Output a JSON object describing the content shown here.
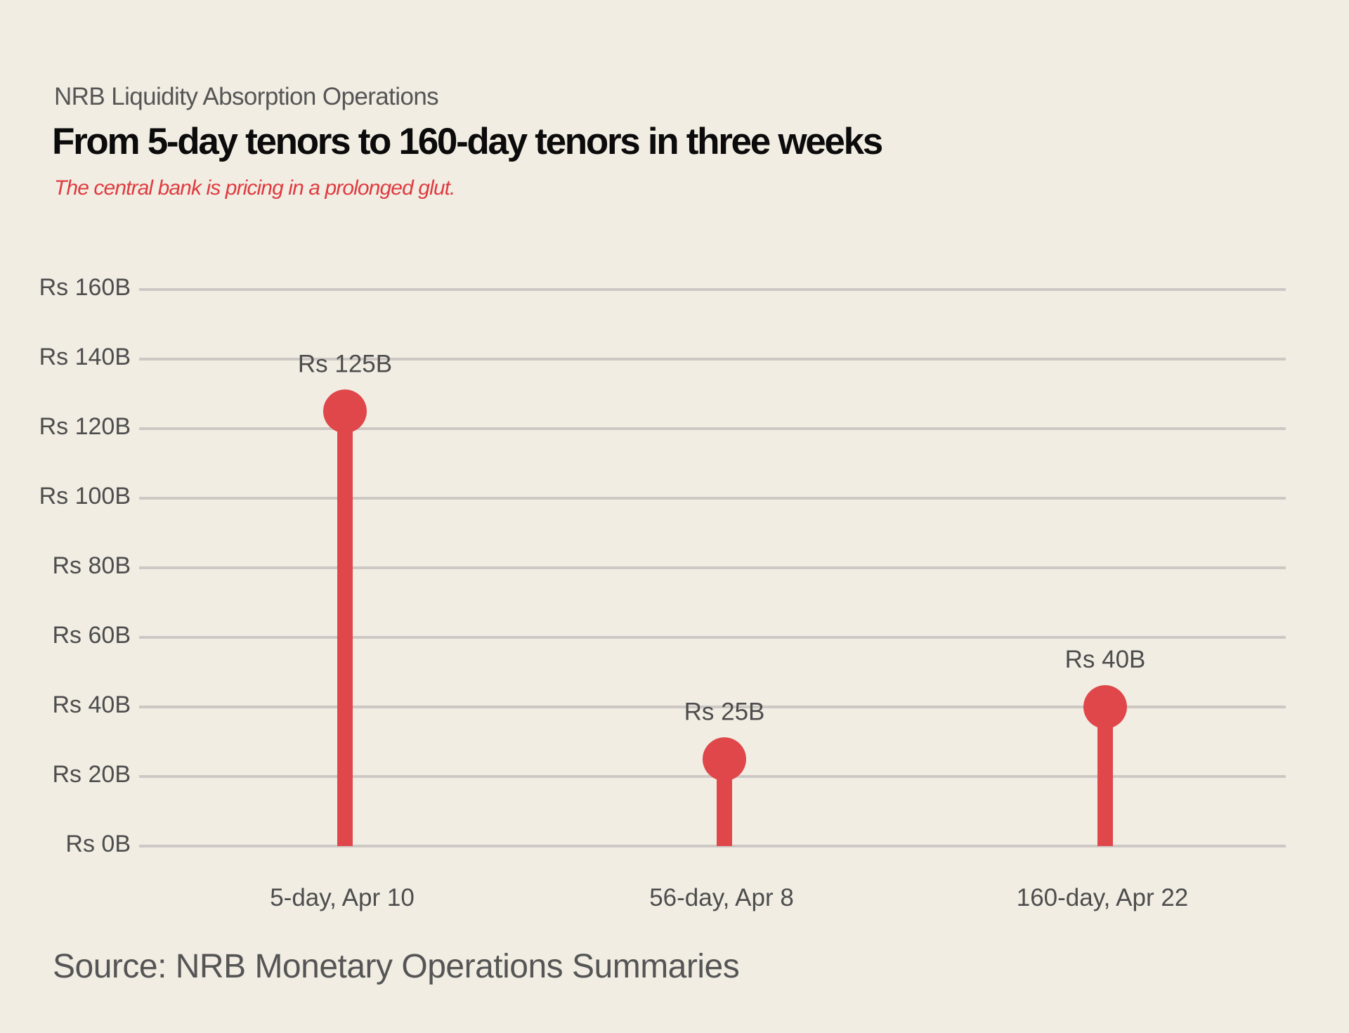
{
  "header": {
    "kicker": "NRB Liquidity Absorption Operations",
    "title": "From 5-day tenors to 160-day tenors in three weeks",
    "subtitle": "The central bank is pricing in a prolonged glut."
  },
  "footer": {
    "source": "Source: NRB Monetary Operations Summaries"
  },
  "colors": {
    "background": "#f1ede3",
    "accent": "#e0474a",
    "subtitle": "#df3b3f",
    "grid": "#cdc8c4",
    "text": "#4d4d4d"
  },
  "chart_data": {
    "type": "lollipop",
    "title": "From 5-day tenors to 160-day tenors in three weeks",
    "subtitle": "The central bank is pricing in a prolonged glut.",
    "xlabel": "",
    "ylabel": "",
    "categories": [
      "5-day, Apr 10",
      "56-day, Apr 8",
      "160-day, Apr 22"
    ],
    "values": [
      125,
      25,
      40
    ],
    "value_labels": [
      "Rs 125B",
      "Rs 25B",
      "Rs 40B"
    ],
    "unit": "Rs billion",
    "ylim": [
      0,
      160
    ],
    "yticks": [
      0,
      20,
      40,
      60,
      80,
      100,
      120,
      140,
      160
    ],
    "ytick_labels": [
      "Rs 0B",
      "Rs 20B",
      "Rs 40B",
      "Rs 60B",
      "Rs 80B",
      "Rs 100B",
      "Rs 120B",
      "Rs 140B",
      "Rs 160B"
    ],
    "grid": true,
    "legend": "none"
  }
}
